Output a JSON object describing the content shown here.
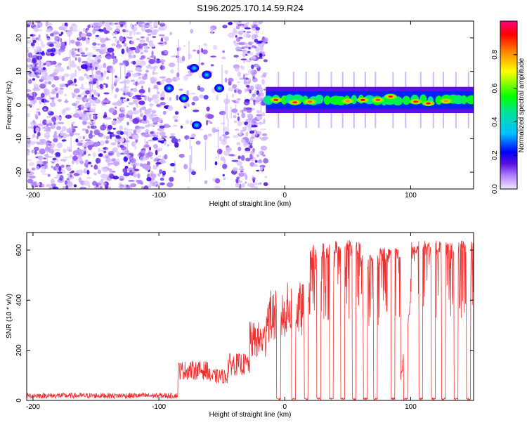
{
  "chart_data": [
    {
      "type": "heatmap",
      "title": "S196.2025.170.14.59.R24",
      "xlabel": "Height of straight line (km)",
      "ylabel": "Frequency (Hz)",
      "xlim": [
        -205,
        150
      ],
      "ylim": [
        -25,
        25
      ],
      "xticks": [
        -200,
        -100,
        0,
        100
      ],
      "yticks": [
        -20,
        -10,
        0,
        10,
        20
      ],
      "colorbar": {
        "label": "Normalized spectral amplitude",
        "range": [
          0,
          1
        ],
        "ticks": [
          0.0,
          0.2,
          0.4,
          0.6,
          0.8
        ],
        "colors": [
          "#f0e8ff",
          "#b080ff",
          "#5a10e0",
          "#0000ff",
          "#00c0ff",
          "#00e0a0",
          "#00ff00",
          "#ffff00",
          "#ff8000",
          "#ff0000",
          "#ff0080"
        ]
      },
      "noise_region": {
        "x": [
          -205,
          -15
        ],
        "y": [
          -25,
          25
        ]
      },
      "signal_band": {
        "x": [
          -15,
          150
        ],
        "center_hz": 1.5,
        "width_hz": 3
      },
      "hot_spots": [
        {
          "x": -7,
          "y": 1.5,
          "value": 0.95
        },
        {
          "x": 8,
          "y": 0.8,
          "value": 0.9
        },
        {
          "x": 20,
          "y": 1.0,
          "value": 0.85
        },
        {
          "x": 50,
          "y": 1.2,
          "value": 0.8
        },
        {
          "x": 62,
          "y": 1.5,
          "value": 0.92
        },
        {
          "x": 74,
          "y": 1.5,
          "value": 0.88
        },
        {
          "x": 84,
          "y": 2.5,
          "value": 0.9
        },
        {
          "x": 104,
          "y": 1.0,
          "value": 0.9
        },
        {
          "x": 114,
          "y": 0.5,
          "value": 0.95
        },
        {
          "x": 128,
          "y": 1.2,
          "value": 0.8
        },
        {
          "x": -92,
          "y": 5,
          "value": 0.45
        },
        {
          "x": -80,
          "y": 2,
          "value": 0.5
        },
        {
          "x": -72,
          "y": 11,
          "value": 0.4
        },
        {
          "x": -62,
          "y": 9,
          "value": 0.4
        },
        {
          "x": -52,
          "y": 5,
          "value": 0.5
        },
        {
          "x": -70,
          "y": -6,
          "value": 0.35
        }
      ]
    },
    {
      "type": "line",
      "title": "",
      "xlabel": "Height of straight line (km)",
      "ylabel": "SNR (10 * v/v)",
      "xlim": [
        -205,
        150
      ],
      "ylim": [
        0,
        670
      ],
      "xticks": [
        -200,
        -100,
        0,
        100
      ],
      "yticks": [
        0,
        200,
        400,
        600
      ],
      "color": "#f03030",
      "segments": [
        {
          "x0": -205,
          "x1": -85,
          "level": 18
        },
        {
          "x0": -85,
          "x1": -60,
          "level": 150
        },
        {
          "x0": -60,
          "x1": -45,
          "level": 120
        },
        {
          "x0": -45,
          "x1": -28,
          "level": 180
        },
        {
          "x0": -28,
          "x1": -15,
          "level": 300
        },
        {
          "x0": -15,
          "x1": 0,
          "level": 420
        },
        {
          "x0": 0,
          "x1": 20,
          "level": 450
        },
        {
          "x0": 20,
          "x1": 40,
          "level": 580
        },
        {
          "x0": 40,
          "x1": 60,
          "level": 590
        },
        {
          "x0": 60,
          "x1": 75,
          "level": 540
        },
        {
          "x0": 75,
          "x1": 92,
          "level": 560
        },
        {
          "x0": 92,
          "x1": 100,
          "level": 100
        },
        {
          "x0": 100,
          "x1": 150,
          "level": 590
        }
      ],
      "dropouts": [
        -5,
        7,
        17,
        27,
        37,
        46,
        55,
        64,
        72,
        86,
        96,
        108,
        118,
        126,
        136,
        146
      ]
    }
  ]
}
